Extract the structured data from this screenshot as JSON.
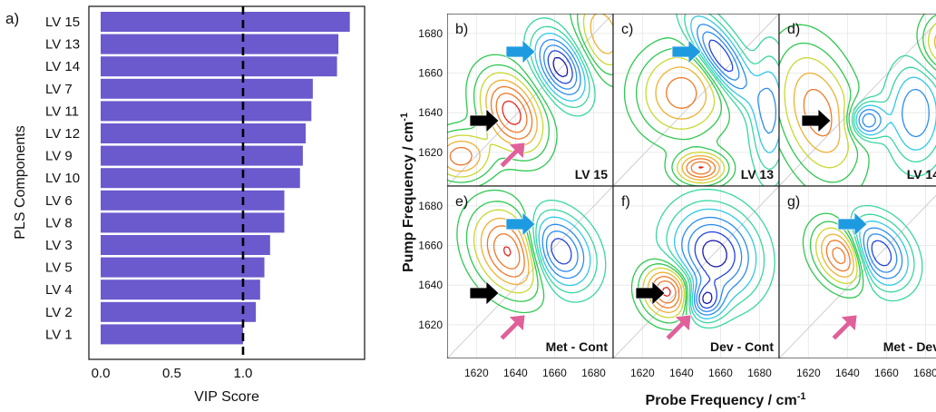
{
  "colors": {
    "bar": "#6a5acd",
    "dashed_line": "#000000",
    "arrow_blue": "#1e9be0",
    "arrow_black": "#000000",
    "arrow_pink": "#e0609a",
    "contour_palette": [
      "#1a1aa8",
      "#2244dd",
      "#2a8cf0",
      "#30c8e8",
      "#38d6a0",
      "#2ec850",
      "#c8d830",
      "#f0b030",
      "#f07828",
      "#e02820"
    ]
  },
  "chart_data": [
    {
      "type": "bar",
      "orientation": "horizontal",
      "panel_label": "a)",
      "xlabel": "VIP Score",
      "ylabel": "PLS Components",
      "categories": [
        "LV 15",
        "LV 13",
        "LV 14",
        "LV 7",
        "LV 11",
        "LV 12",
        "LV 9",
        "LV 10",
        "LV 6",
        "LV 8",
        "LV 3",
        "LV 5",
        "LV 4",
        "LV 2",
        "LV 1"
      ],
      "values": [
        1.75,
        1.67,
        1.66,
        1.49,
        1.48,
        1.44,
        1.42,
        1.4,
        1.29,
        1.29,
        1.19,
        1.15,
        1.12,
        1.09,
        1.0
      ],
      "xlim": [
        0,
        1.88
      ],
      "xticks": [
        "0.0",
        "0.5",
        "1.0"
      ],
      "threshold_line": 1.0,
      "grid": false
    },
    {
      "type": "heatmap",
      "plot_kind": "2D IR contour maps",
      "xlabel": "Probe Frequency / cm",
      "xlabel_sup": "-1",
      "ylabel": "Pump Frequency / cm",
      "ylabel_sup": "-1",
      "xlim": [
        1605,
        1690
      ],
      "ylim": [
        1603,
        1690
      ],
      "xticks": [
        "1620",
        "1640",
        "1660",
        "1680"
      ],
      "yticks": [
        "1620",
        "1640",
        "1660",
        "1680"
      ],
      "panels": [
        {
          "label": "b)",
          "title": "LV 15",
          "arrows": [
            "blue",
            "black",
            "pink"
          ]
        },
        {
          "label": "c)",
          "title": "LV 13",
          "arrows": [
            "blue"
          ]
        },
        {
          "label": "d)",
          "title": "LV 14",
          "arrows": [
            "black"
          ]
        },
        {
          "label": "e)",
          "title": "Met - Cont",
          "arrows": [
            "blue",
            "black",
            "pink"
          ]
        },
        {
          "label": "f)",
          "title": "Dev - Cont",
          "arrows": [
            "black",
            "pink"
          ]
        },
        {
          "label": "g)",
          "title": "Met - Dev",
          "arrows": [
            "blue",
            "pink"
          ]
        }
      ]
    }
  ]
}
